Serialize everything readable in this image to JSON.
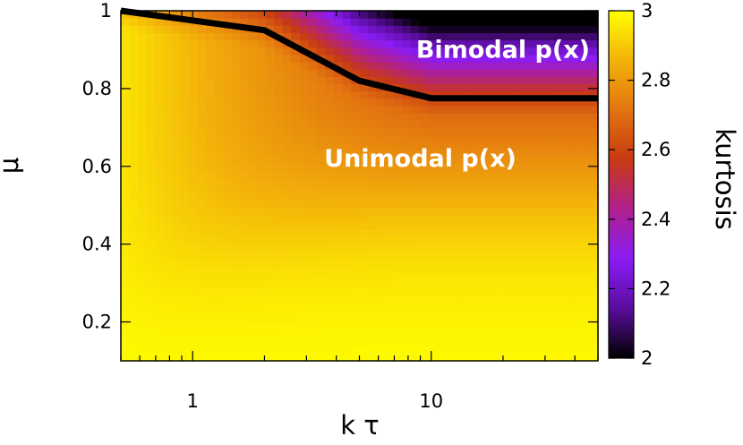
{
  "chart_data": {
    "type": "heatmap",
    "title": "",
    "xlabel": "k τ",
    "ylabel": "μ",
    "colorbar_label": "kurtosis",
    "x_scale": "log",
    "xlim": [
      0.5,
      50
    ],
    "ylim": [
      0.1,
      1.0
    ],
    "x_ticks": [
      {
        "value": 1,
        "label": "1"
      },
      {
        "value": 10,
        "label": "10"
      }
    ],
    "y_ticks": [
      {
        "value": 0.2,
        "label": "0.2"
      },
      {
        "value": 0.4,
        "label": "0.4"
      },
      {
        "value": 0.6,
        "label": "0.6"
      },
      {
        "value": 0.8,
        "label": "0.8"
      },
      {
        "value": 1.0,
        "label": "1"
      }
    ],
    "colorbar_range": [
      2.0,
      3.0
    ],
    "colorbar_ticks": [
      {
        "value": 2.0,
        "label": "2"
      },
      {
        "value": 2.2,
        "label": "2.2"
      },
      {
        "value": 2.4,
        "label": "2.4"
      },
      {
        "value": 2.6,
        "label": "2.6"
      },
      {
        "value": 2.8,
        "label": "2.8"
      },
      {
        "value": 3.0,
        "label": "3"
      }
    ],
    "colormap_stops": [
      "#000000",
      "#5a0d9e",
      "#8a1cf5",
      "#b0208f",
      "#c83a12",
      "#e27410",
      "#f3b20a",
      "#ffff00"
    ],
    "boundary_line": {
      "color": "#000000",
      "points": [
        {
          "x": 0.5,
          "y": 1.0
        },
        {
          "x": 2.0,
          "y": 0.95
        },
        {
          "x": 5.0,
          "y": 0.82
        },
        {
          "x": 10.0,
          "y": 0.775
        },
        {
          "x": 50.0,
          "y": 0.775
        }
      ]
    },
    "annotations": [
      {
        "text": "Bimodal p(x)",
        "x": 20,
        "y": 0.9
      },
      {
        "text": "Unimodal p(x)",
        "x": 9,
        "y": 0.62
      }
    ]
  }
}
